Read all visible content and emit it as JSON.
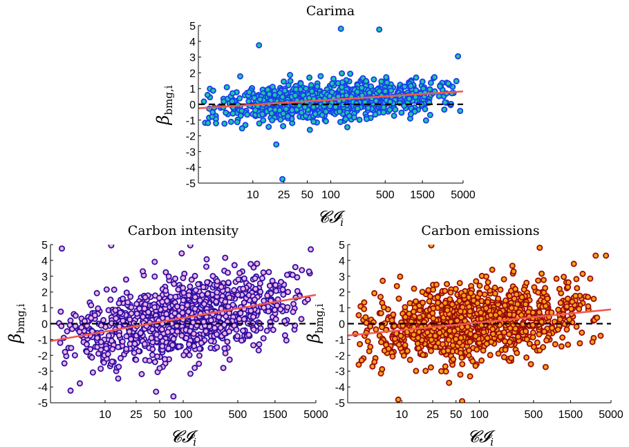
{
  "chart_data": [
    {
      "type": "scatter",
      "title": "Carima",
      "xlabel": "𝓒𝓘",
      "xlabel_sub": "i",
      "ylabel": "β",
      "ylabel_sub": "bmg,i",
      "x_scale": "log",
      "xlim": [
        2,
        5000
      ],
      "ylim": [
        -5,
        5
      ],
      "x_ticks": [
        10,
        25,
        50,
        100,
        500,
        1500,
        5000
      ],
      "x_tick_labels": [
        "10",
        "25",
        "50",
        "100",
        "500",
        "1500",
        "5000"
      ],
      "y_ticks": [
        -5,
        -4,
        -3,
        -2,
        -1,
        0,
        1,
        2,
        3,
        4,
        5
      ],
      "y_tick_labels": [
        "-5",
        "-4",
        "-3",
        "-2",
        "-1",
        "0",
        "1",
        "2",
        "3",
        "4",
        "5"
      ],
      "grid": false,
      "marker_fill": "#1ec8a0",
      "marker_edge": "#1a3cf0",
      "fit_color": "#f05a4e",
      "zero_line": "dashed black at y=0",
      "fit_line": {
        "x": [
          2,
          5000
        ],
        "y": [
          -0.25,
          0.82
        ]
      },
      "spread": 0.6,
      "n_points": 900,
      "notable_points": [
        {
          "x": 135,
          "y": 4.8
        },
        {
          "x": 420,
          "y": 4.75
        },
        {
          "x": 12,
          "y": 3.75
        },
        {
          "x": 24,
          "y": -4.75
        },
        {
          "x": 20,
          "y": -2.55
        },
        {
          "x": 4300,
          "y": 3.05
        }
      ]
    },
    {
      "type": "scatter",
      "title": "Carbon intensity",
      "xlabel": "𝓒𝓘",
      "xlabel_sub": "i",
      "ylabel": "β",
      "ylabel_sub": "bmg,i",
      "x_scale": "log",
      "xlim": [
        2,
        5000
      ],
      "ylim": [
        -5,
        5
      ],
      "x_ticks": [
        10,
        25,
        50,
        100,
        500,
        1500,
        5000
      ],
      "x_tick_labels": [
        "10",
        "25",
        "50",
        "100",
        "500",
        "1500",
        "5000"
      ],
      "y_ticks": [
        -5,
        -4,
        -3,
        -2,
        -1,
        0,
        1,
        2,
        3,
        4,
        5
      ],
      "y_tick_labels": [
        "-5",
        "-4",
        "-3",
        "-2",
        "-1",
        "0",
        "1",
        "2",
        "3",
        "4",
        "5"
      ],
      "grid": false,
      "marker_fill": "#f4b2e6",
      "marker_edge": "#2a0fa0",
      "fit_color": "#f05a4e",
      "zero_line": "dashed black at y=0",
      "fit_line": {
        "x": [
          2,
          5000
        ],
        "y": [
          -1.1,
          1.82
        ]
      },
      "spread": 1.2,
      "n_points": 1000,
      "notable_points": [
        {
          "x": 2.8,
          "y": 4.75
        },
        {
          "x": 12,
          "y": 4.95
        },
        {
          "x": 75,
          "y": -4.6
        },
        {
          "x": 45,
          "y": -4.3
        },
        {
          "x": 4300,
          "y": 4.7
        }
      ]
    },
    {
      "type": "scatter",
      "title": "Carbon emissions",
      "xlabel": "𝓒𝓘",
      "xlabel_sub": "i",
      "ylabel": "β",
      "ylabel_sub": "bmg,i",
      "x_scale": "log",
      "xlim": [
        2,
        5000
      ],
      "ylim": [
        -5,
        5
      ],
      "x_ticks": [
        10,
        25,
        50,
        100,
        500,
        1500,
        5000
      ],
      "x_tick_labels": [
        "10",
        "25",
        "50",
        "100",
        "500",
        "1500",
        "5000"
      ],
      "y_ticks": [
        -5,
        -4,
        -3,
        -2,
        -1,
        0,
        1,
        2,
        3,
        4,
        5
      ],
      "y_tick_labels": [
        "-5",
        "-4",
        "-3",
        "-2",
        "-1",
        "0",
        "1",
        "2",
        "3",
        "4",
        "5"
      ],
      "grid": false,
      "marker_fill": "#f8a214",
      "marker_edge": "#9a0a0a",
      "fit_color": "#f05a4e",
      "zero_line": "dashed black at y=0",
      "fit_line": {
        "x": [
          2,
          5000
        ],
        "y": [
          -0.75,
          0.9
        ]
      },
      "spread": 1.15,
      "n_points": 1000,
      "notable_points": [
        {
          "x": 24,
          "y": 4.95
        },
        {
          "x": 9,
          "y": -4.8
        },
        {
          "x": 60,
          "y": -4.9
        },
        {
          "x": 600,
          "y": 4.8
        },
        {
          "x": 4300,
          "y": 4.3
        }
      ]
    }
  ]
}
